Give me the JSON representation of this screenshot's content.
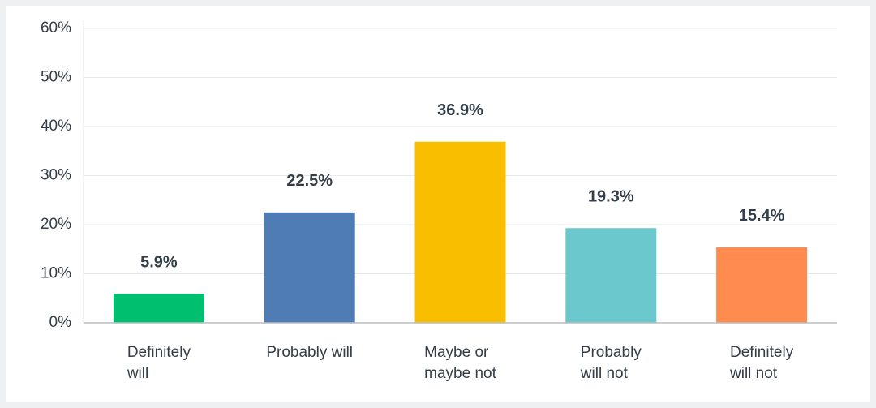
{
  "chart_data": {
    "type": "bar",
    "categories": [
      "Definitely\nwill",
      "Probably will",
      "Maybe or\nmaybe not",
      "Probably\nwill not",
      "Definitely\nwill not"
    ],
    "values": [
      5.9,
      22.5,
      36.9,
      19.3,
      15.4
    ],
    "value_labels": [
      "5.9%",
      "22.5%",
      "36.9%",
      "19.3%",
      "15.4%"
    ],
    "colors": [
      "#00bf6f",
      "#507cb6",
      "#f9be00",
      "#6bc8cd",
      "#ff8b4f"
    ],
    "ylim": [
      0,
      60
    ],
    "yticks": [
      {
        "value": 0,
        "label": "0%"
      },
      {
        "value": 10,
        "label": "10%"
      },
      {
        "value": 20,
        "label": "20%"
      },
      {
        "value": 30,
        "label": "30%"
      },
      {
        "value": 40,
        "label": "40%"
      },
      {
        "value": 50,
        "label": "50%"
      },
      {
        "value": 60,
        "label": "60%"
      }
    ],
    "grid": true
  }
}
